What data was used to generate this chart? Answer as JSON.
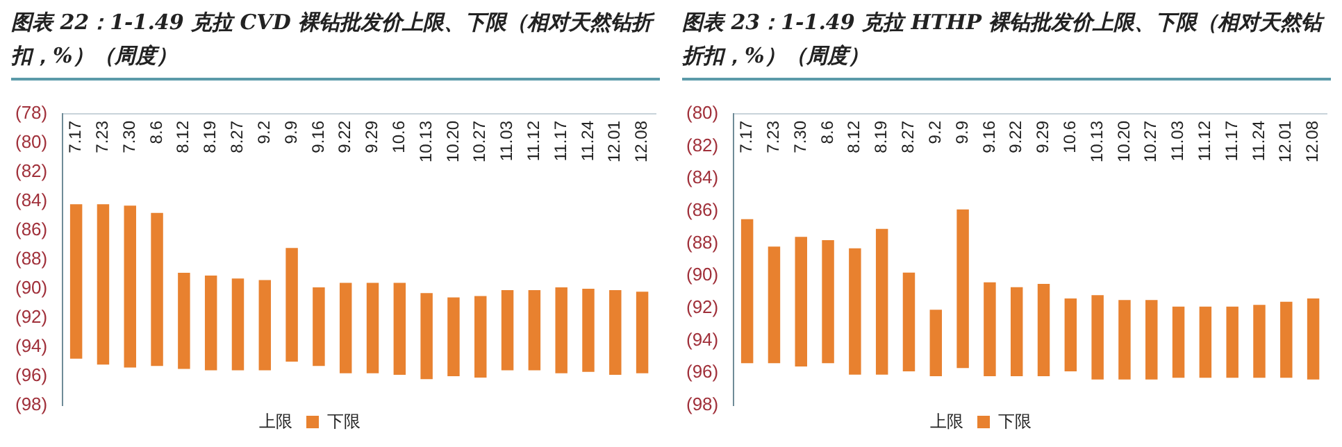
{
  "chart_data": [
    {
      "type": "bar",
      "title": "图表 22：1-1.49 克拉 CVD 裸钻批发价上限、下限（相对天然钻折扣，%）（周度）",
      "categories": [
        "7.17",
        "7.23",
        "7.30",
        "8.6",
        "8.12",
        "8.19",
        "8.27",
        "9.2",
        "9.9",
        "9.16",
        "9.22",
        "9.29",
        "10.6",
        "10.13",
        "10.20",
        "10.27",
        "11.03",
        "11.12",
        "11.17",
        "11.24",
        "12.01",
        "12.08"
      ],
      "series": [
        {
          "name": "下限",
          "color": "#e8812f",
          "base": [
            -84.2,
            -84.2,
            -84.3,
            -84.8,
            -88.9,
            -89.1,
            -89.3,
            -89.4,
            -87.2,
            -89.9,
            -89.6,
            -89.6,
            -89.6,
            -90.3,
            -90.6,
            -90.5,
            -90.1,
            -90.1,
            -89.9,
            -90.0,
            -90.1,
            -90.2
          ],
          "values": [
            -10.6,
            -11.0,
            -11.1,
            -10.5,
            -6.6,
            -6.5,
            -6.3,
            -6.2,
            -7.8,
            -5.4,
            -6.2,
            -6.2,
            -6.3,
            -5.9,
            -5.4,
            -5.6,
            -5.5,
            -5.5,
            -5.9,
            -5.7,
            -5.8,
            -5.6
          ]
        }
      ],
      "annotations": [
        "上限"
      ],
      "ylim": [
        -98,
        -78
      ],
      "yticks": [
        {
          "value": -98,
          "label": "(98)"
        },
        {
          "value": -96,
          "label": "(96)"
        },
        {
          "value": -94,
          "label": "(94)"
        },
        {
          "value": -92,
          "label": "(92)"
        },
        {
          "value": -90,
          "label": "(90)"
        },
        {
          "value": -88,
          "label": "(88)"
        },
        {
          "value": -86,
          "label": "(86)"
        },
        {
          "value": -84,
          "label": "(84)"
        },
        {
          "value": -82,
          "label": "(82)"
        },
        {
          "value": -80,
          "label": "(80)"
        },
        {
          "value": -78,
          "label": "(78)"
        }
      ],
      "legend": "bottom"
    },
    {
      "type": "bar",
      "title": "图表 23：1-1.49 克拉 HTHP 裸钻批发价上限、下限（相对天然钻折扣，%）（周度）",
      "categories": [
        "7.17",
        "7.23",
        "7.30",
        "8.6",
        "8.12",
        "8.19",
        "8.27",
        "9.2",
        "9.9",
        "9.16",
        "9.22",
        "9.29",
        "10.6",
        "10.13",
        "10.20",
        "10.27",
        "11.03",
        "11.12",
        "11.17",
        "11.24",
        "12.01",
        "12.08"
      ],
      "series": [
        {
          "name": "下限",
          "color": "#e8812f",
          "base": [
            -86.5,
            -88.2,
            -87.6,
            -87.8,
            -88.3,
            -87.1,
            -89.8,
            -92.1,
            -85.9,
            -90.4,
            -90.7,
            -90.5,
            -91.4,
            -91.2,
            -91.5,
            -91.5,
            -91.9,
            -91.9,
            -91.9,
            -91.8,
            -91.6,
            -91.4
          ],
          "values": [
            -8.9,
            -7.2,
            -8.0,
            -7.6,
            -7.8,
            -9.0,
            -6.1,
            -4.1,
            -9.8,
            -5.8,
            -5.5,
            -5.7,
            -4.5,
            -5.2,
            -4.9,
            -4.9,
            -4.4,
            -4.4,
            -4.4,
            -4.5,
            -4.7,
            -5.0
          ]
        }
      ],
      "annotations": [
        "上限"
      ],
      "ylim": [
        -98,
        -80
      ],
      "yticks": [
        {
          "value": -98,
          "label": "(98)"
        },
        {
          "value": -96,
          "label": "(96)"
        },
        {
          "value": -94,
          "label": "(94)"
        },
        {
          "value": -92,
          "label": "(92)"
        },
        {
          "value": -90,
          "label": "(90)"
        },
        {
          "value": -88,
          "label": "(88)"
        },
        {
          "value": -86,
          "label": "(86)"
        },
        {
          "value": -84,
          "label": "(84)"
        },
        {
          "value": -82,
          "label": "(82)"
        },
        {
          "value": -80,
          "label": "(80)"
        }
      ],
      "legend": "bottom"
    }
  ]
}
